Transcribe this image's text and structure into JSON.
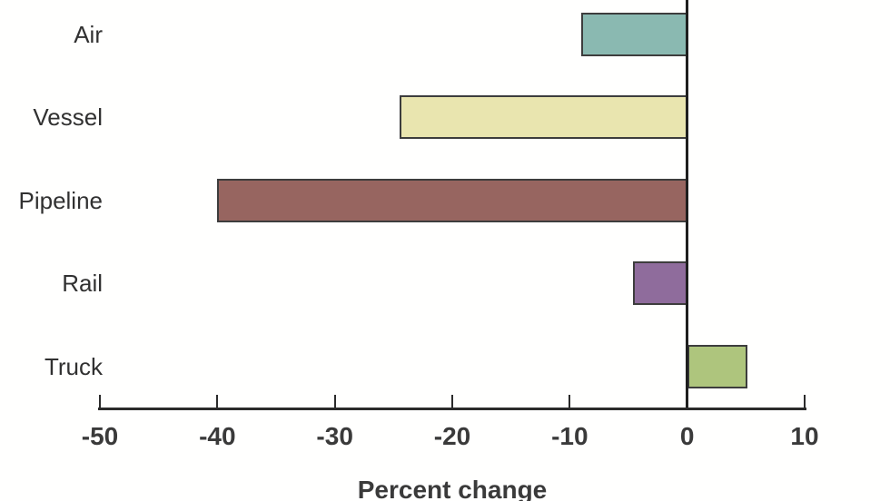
{
  "chart_data": {
    "type": "bar",
    "orientation": "horizontal",
    "title": "",
    "categories": [
      "Air",
      "Vessel",
      "Pipeline",
      "Rail",
      "Truck"
    ],
    "values": [
      -9,
      -24.5,
      -40,
      -4.6,
      5.1
    ],
    "xlabel": "Percent change",
    "ylabel": "",
    "xlim": [
      -50,
      10
    ],
    "xticks": [
      -50,
      -40,
      -30,
      -20,
      -10,
      0,
      10
    ],
    "grid": false,
    "legend": false,
    "bar_colors": [
      "#8ab9b1",
      "#e9e5af",
      "#976560",
      "#8f6c9c",
      "#aec57d"
    ],
    "bar_border_color": "#3d3d3d",
    "zero_line_color": "#1f1f1f",
    "axis_color": "#2b2b2b",
    "text_color": "#3a3a3a"
  }
}
